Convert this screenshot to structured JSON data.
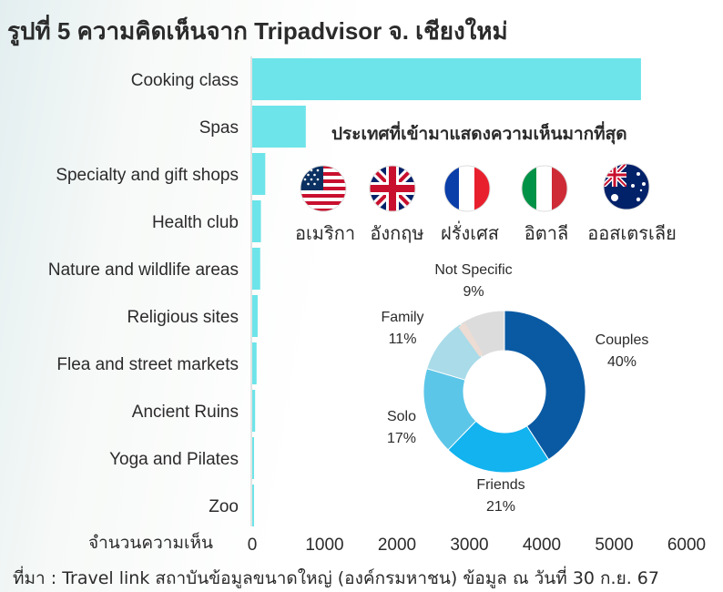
{
  "header": {
    "title": "รูปที่ 5 ความคิดเห็นจาก Tripadvisor จ. เชียงใหม่"
  },
  "chart_data": [
    {
      "type": "bar",
      "orientation": "horizontal",
      "categories": [
        "Cooking class",
        "Spas",
        "Specialty and gift shops",
        "Health club",
        "Nature and wildlife areas",
        "Religious sites",
        "Flea and street markets",
        "Ancient Ruins",
        "Yoga and Pilates",
        "Zoo"
      ],
      "values": [
        5370,
        740,
        180,
        120,
        110,
        75,
        60,
        40,
        25,
        15
      ],
      "xlabel": "จำนวนความเห็น",
      "xlim": [
        0,
        6000
      ],
      "xticks": [
        "0",
        "1000",
        "2000",
        "3000",
        "4000",
        "5000",
        "6000"
      ],
      "bar_color": "#6de4e9",
      "grid": false
    },
    {
      "type": "pie",
      "donut": true,
      "categories": [
        "Couples",
        "Friends",
        "Solo",
        "Family",
        "Not Specific"
      ],
      "values": [
        40,
        21,
        17,
        11,
        9
      ],
      "value_labels": [
        "40%",
        "21%",
        "17%",
        "11%",
        "9%"
      ],
      "colors": [
        "#0a5aa3",
        "#12b3ef",
        "#5cc6e8",
        "#a9dbe9",
        "#dcdcdc"
      ]
    }
  ],
  "countries": {
    "title": "ประเทศที่เข้ามาแสดงความเห็นมากที่สุด",
    "items": [
      {
        "name": "อเมริกา",
        "flag": "usa-flag-icon"
      },
      {
        "name": "อังกฤษ",
        "flag": "uk-flag-icon"
      },
      {
        "name": "ฝรั่งเศส",
        "flag": "france-flag-icon"
      },
      {
        "name": "อิตาลี",
        "flag": "italy-flag-icon"
      },
      {
        "name": "ออสเตรเลีย",
        "flag": "australia-flag-icon"
      }
    ]
  },
  "footer": {
    "source": "ที่มา : Travel link สถาบันข้อมูลขนาดใหญ่ (องค์กรมหาชน)  ข้อมูล ณ วันที่ 30 ก.ย. 67"
  }
}
